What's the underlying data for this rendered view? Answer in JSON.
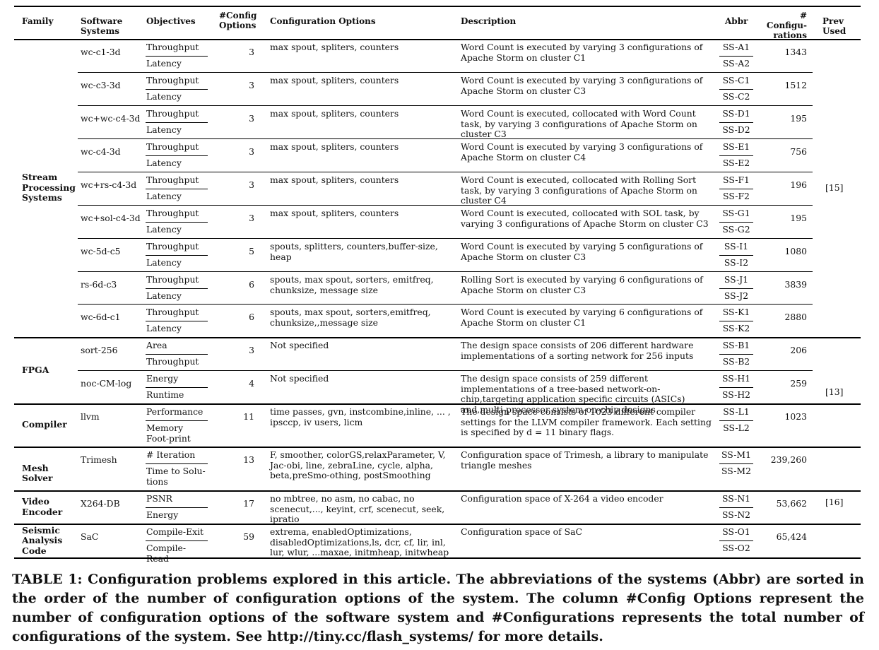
{
  "headers": {
    "family": "Family",
    "systems": "Software Systems",
    "objectives": "Objectives",
    "numopts": "#Config Options",
    "options": "Configuration Options",
    "description": "Description",
    "abbr": "Abbr",
    "numconf": "# Configu-rations",
    "prev": "Prev Used"
  },
  "families": [
    {
      "label": "Stream Processing Systems"
    },
    {
      "label": "FPGA"
    },
    {
      "label": "Compiler"
    },
    {
      "label": "Mesh Solver"
    },
    {
      "label": "Video Encoder"
    },
    {
      "label": "Seismic Analysis Code"
    }
  ],
  "prev_used": [
    "[15]",
    "[13]",
    "[16]"
  ],
  "rows": [
    {
      "system": "wc-c1-3d",
      "obj1": "Throughput",
      "obj2": "Latency",
      "numopts": "3",
      "options": "max spout, spliters, counters",
      "description": "Word Count is executed by varying 3 configurations of Apache Storm on cluster C1",
      "abbr1": "SS-A1",
      "abbr2": "SS-A2",
      "numconf": "1343"
    },
    {
      "system": "wc-c3-3d",
      "obj1": "Throughput",
      "obj2": "Latency",
      "numopts": "3",
      "options": "max spout, spliters, counters",
      "description": "Word Count is executed by varying 3 configurations of Apache Storm on cluster C3",
      "abbr1": "SS-C1",
      "abbr2": "SS-C2",
      "numconf": "1512"
    },
    {
      "system": "wc+wc-c4-3d",
      "obj1": "Throughput",
      "obj2": "Latency",
      "numopts": "3",
      "options": "max spout, spliters, counters",
      "description": "Word Count is executed, collocated with Word Count task, by varying 3 configurations of Apache Storm on cluster C3",
      "abbr1": "SS-D1",
      "abbr2": "SS-D2",
      "numconf": "195"
    },
    {
      "system": "wc-c4-3d",
      "obj1": "Throughput",
      "obj2": "Latency",
      "numopts": "3",
      "options": "max spout, spliters, counters",
      "description": "Word Count is executed by varying 3 configurations of Apache Storm on cluster C4",
      "abbr1": "SS-E1",
      "abbr2": "SS-E2",
      "numconf": "756"
    },
    {
      "system": "wc+rs-c4-3d",
      "obj1": "Throughput",
      "obj2": "Latency",
      "numopts": "3",
      "options": "max spout, spliters, counters",
      "description": "Word Count is executed, collocated with Rolling Sort task, by varying 3 configurations of Apache Storm on cluster C4",
      "abbr1": "SS-F1",
      "abbr2": "SS-F2",
      "numconf": "196"
    },
    {
      "system": "wc+sol-c4-3d",
      "obj1": "Throughput",
      "obj2": "Latency",
      "numopts": "3",
      "options": "max spout, spliters, counters",
      "description": "Word Count is executed, collocated with SOL task, by varying 3 configurations of Apache Storm on cluster C3",
      "abbr1": "SS-G1",
      "abbr2": "SS-G2",
      "numconf": "195"
    },
    {
      "system": "wc-5d-c5",
      "obj1": "Throughput",
      "obj2": "Latency",
      "numopts": "5",
      "options": "spouts, splitters, counters,buffer-size, heap",
      "description": "Word Count is executed by varying 5 configurations of Apache Storm on cluster C3",
      "abbr1": "SS-I1",
      "abbr2": "SS-I2",
      "numconf": "1080"
    },
    {
      "system": "rs-6d-c3",
      "obj1": "Throughput",
      "obj2": "Latency",
      "numopts": "6",
      "options": "spouts, max spout, sorters, emitfreq, chunksize, message size",
      "description": "Rolling Sort is executed by varying 6 configurations of Apache Storm on cluster C3",
      "abbr1": "SS-J1",
      "abbr2": "SS-J2",
      "numconf": "3839"
    },
    {
      "system": "wc-6d-c1",
      "obj1": "Throughput",
      "obj2": "Latency",
      "numopts": "6",
      "options": "spouts, max spout, sorters,emitfreq, chunksize,,message size",
      "description": "Word Count is executed by varying 6 configurations of Apache Storm on cluster C1",
      "abbr1": "SS-K1",
      "abbr2": "SS-K2",
      "numconf": "2880"
    },
    {
      "system": "sort-256",
      "obj1": "Area",
      "obj2": "Throughput",
      "numopts": "3",
      "options": "Not specified",
      "description": "The design space consists of 206 different hardware implementations of a sorting network for 256 inputs",
      "abbr1": "SS-B1",
      "abbr2": "SS-B2",
      "numconf": "206"
    },
    {
      "system": "noc-CM-log",
      "obj1": "Energy",
      "obj2": "Runtime",
      "numopts": "4",
      "options": "Not specified",
      "description": "The design space consists of 259 different implementations of a tree-based network-on-chip,targeting application specific circuits (ASICs) and,multi-processor system-on-chip designs",
      "abbr1": "SS-H1",
      "abbr2": "SS-H2",
      "numconf": "259"
    },
    {
      "system": "llvm",
      "obj1": "Performance",
      "obj2": "Memory Foot-print",
      "numopts": "11",
      "options": "time passes, gvn, instcombine,inline, ... , ipsccp, iv users, licm",
      "description": "The design space consists of 1023 different compiler settings for the LLVM compiler framework. Each setting is specified by d = 11 binary flags.",
      "abbr1": "SS-L1",
      "abbr2": "SS-L2",
      "numconf": "1023"
    },
    {
      "system": "Trimesh",
      "obj1": "# Iteration",
      "obj2": "Time to Solu-tions",
      "numopts": "13",
      "options": "F, smoother, colorGS,relaxParameter, V, Jac-obi, line, zebraLine, cycle, alpha, beta,preSmo-othing, postSmoothing",
      "description": "Configuration space of Trimesh, a library to manipulate triangle meshes",
      "abbr1": "SS-M1",
      "abbr2": "SS-M2",
      "numconf": "239,260"
    },
    {
      "system": "X264-DB",
      "obj1": "PSNR",
      "obj2": "Energy",
      "numopts": "17",
      "options": "no mbtree, no asm, no cabac, no scenecut,..., keyint, crf, scenecut, seek, ipratio",
      "description": "Configuration space of X-264 a video encoder",
      "abbr1": "SS-N1",
      "abbr2": "SS-N2",
      "numconf": "53,662"
    },
    {
      "system": "SaC",
      "obj1": "Compile-Exit",
      "obj2": "Compile-Read",
      "numopts": "59",
      "options": "extrema, enabledOptimizations, disabledOptimizations,ls, dcr, cf, lir, inl, lur, wlur, ...maxae, initmheap, initwheap",
      "description": "Configuration space of SaC",
      "abbr1": "SS-O1",
      "abbr2": "SS-O2",
      "numconf": "65,424"
    }
  ],
  "caption": "TABLE 1: Configuration problems explored in this article. The abbreviations of the systems (Abbr) are sorted in the order of the number of configuration options of the system. The column #Config Options represent the number of configuration options of the software system and #Configurations represents the total number of configurations of the system. See http://tiny.cc/flash_systems/ for more details."
}
